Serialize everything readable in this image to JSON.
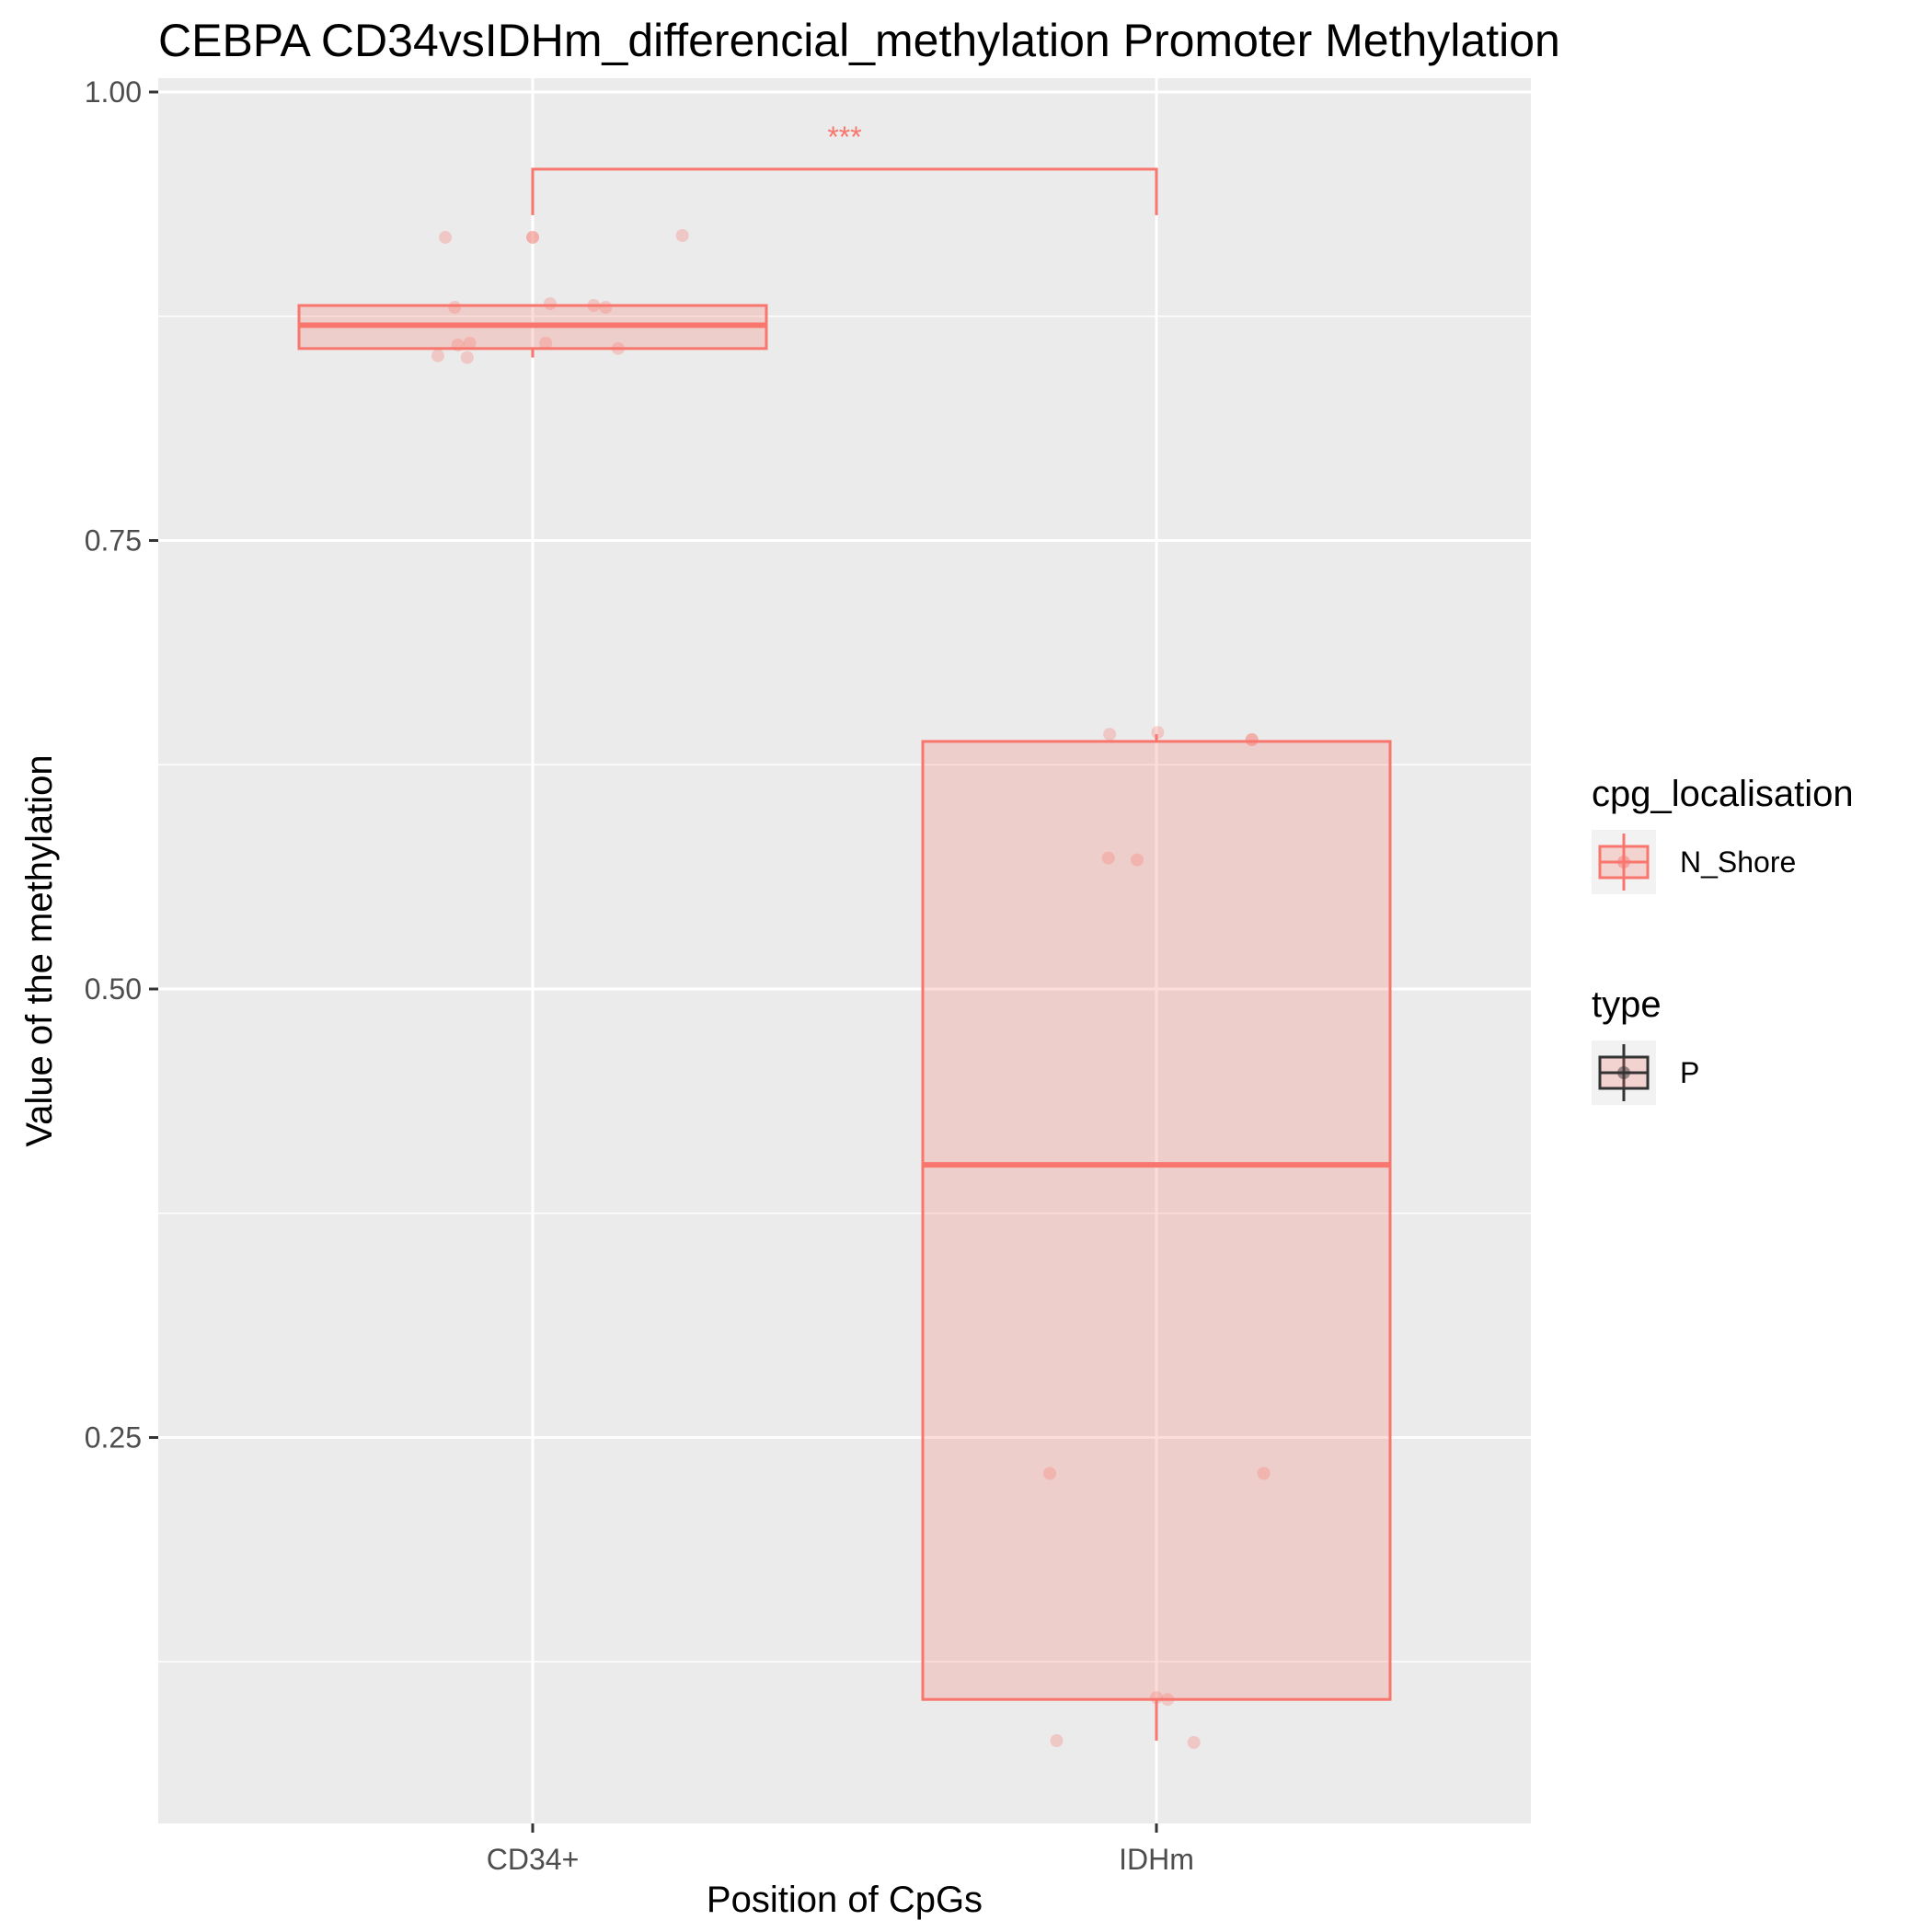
{
  "chart_data": {
    "type": "box",
    "title": "CEBPA CD34vsIDHm_differencial_methylation Promoter Methylation",
    "xlabel": "Position of CpGs",
    "ylabel": "Value of the methylation",
    "categories": [
      "CD34+",
      "IDHm"
    ],
    "y_ticks": [
      0.25,
      0.5,
      0.75,
      1.0
    ],
    "y_tick_labels": [
      "0.25",
      "0.50",
      "0.75",
      "1.00"
    ],
    "ylim": [
      0.04,
      1.0
    ],
    "grid": true,
    "legend_placement": "right",
    "colors": {
      "series": "#F8766D",
      "fill": "#F8766D",
      "panel": "#EBEBEB",
      "grid": "#FFFFFF",
      "type_key": "#333333"
    },
    "boxes": [
      {
        "category": "CD34+",
        "q1": 0.857,
        "median": 0.87,
        "q3": 0.881,
        "whisker_low": 0.852,
        "whisker_high": 0.881
      },
      {
        "category": "IDHm",
        "q1": 0.104,
        "median": 0.402,
        "q3": 0.638,
        "whisker_low": 0.081,
        "whisker_high": 0.642
      }
    ],
    "points": [
      {
        "category": "CD34+",
        "x_offset": -0.14,
        "y": 0.919
      },
      {
        "category": "CD34+",
        "x_offset": 0.0,
        "y": 0.919
      },
      {
        "category": "CD34+",
        "x_offset": 0.0,
        "y": 0.919
      },
      {
        "category": "CD34+",
        "x_offset": 0.24,
        "y": 0.92
      },
      {
        "category": "CD34+",
        "x_offset": -0.125,
        "y": 0.88
      },
      {
        "category": "CD34+",
        "x_offset": 0.028,
        "y": 0.882
      },
      {
        "category": "CD34+",
        "x_offset": 0.098,
        "y": 0.881
      },
      {
        "category": "CD34+",
        "x_offset": 0.117,
        "y": 0.88
      },
      {
        "category": "CD34+",
        "x_offset": -0.12,
        "y": 0.859
      },
      {
        "category": "CD34+",
        "x_offset": -0.101,
        "y": 0.86
      },
      {
        "category": "CD34+",
        "x_offset": 0.021,
        "y": 0.86
      },
      {
        "category": "CD34+",
        "x_offset": 0.137,
        "y": 0.857
      },
      {
        "category": "CD34+",
        "x_offset": -0.152,
        "y": 0.853
      },
      {
        "category": "CD34+",
        "x_offset": -0.105,
        "y": 0.852
      },
      {
        "category": "IDHm",
        "x_offset": -0.075,
        "y": 0.642
      },
      {
        "category": "IDHm",
        "x_offset": 0.002,
        "y": 0.643
      },
      {
        "category": "IDHm",
        "x_offset": 0.153,
        "y": 0.639
      },
      {
        "category": "IDHm",
        "x_offset": 0.153,
        "y": 0.639
      },
      {
        "category": "IDHm",
        "x_offset": -0.077,
        "y": 0.573
      },
      {
        "category": "IDHm",
        "x_offset": -0.031,
        "y": 0.572
      },
      {
        "category": "IDHm",
        "x_offset": -0.171,
        "y": 0.23
      },
      {
        "category": "IDHm",
        "x_offset": 0.172,
        "y": 0.23
      },
      {
        "category": "IDHm",
        "x_offset": 0.0,
        "y": 0.105
      },
      {
        "category": "IDHm",
        "x_offset": 0.018,
        "y": 0.104
      },
      {
        "category": "IDHm",
        "x_offset": -0.16,
        "y": 0.081
      },
      {
        "category": "IDHm",
        "x_offset": 0.06,
        "y": 0.08
      }
    ],
    "significance": {
      "from": "CD34+",
      "to": "IDHm",
      "label": "***",
      "y": 0.957
    },
    "legends": [
      {
        "title": "cpg_localisation",
        "entries": [
          {
            "label": "N_Shore",
            "color": "#F8766D"
          }
        ]
      },
      {
        "title": "type",
        "entries": [
          {
            "label": "P",
            "color": "#333333"
          }
        ]
      }
    ]
  }
}
